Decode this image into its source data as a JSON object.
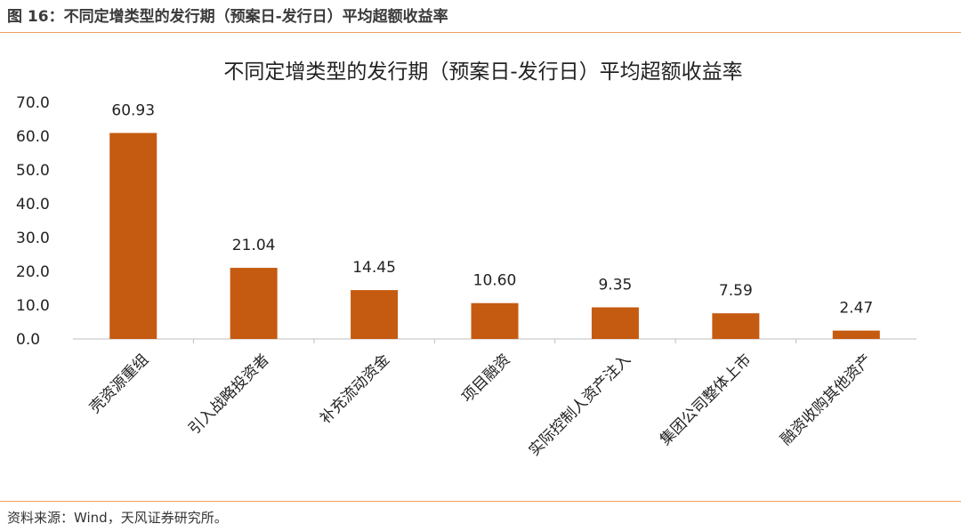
{
  "figure": {
    "caption": "图 16：不同定增类型的发行期（预案日-发行日）平均超额收益率",
    "source": "资料来源：Wind，天风证券研究所。"
  },
  "colors": {
    "bar": "#c55a11",
    "rule": "#f0a060",
    "axis": "#bfbfbf"
  },
  "chart_data": {
    "type": "bar",
    "title": "不同定增类型的发行期（预案日-发行日）平均超额收益率",
    "categories": [
      "壳资源重组",
      "引入战略投资者",
      "补充流动资金",
      "项目融资",
      "实际控制人资产注入",
      "集团公司整体上市",
      "融资收购其他资产"
    ],
    "values": [
      60.93,
      21.04,
      14.45,
      10.6,
      9.35,
      7.59,
      2.47
    ],
    "value_labels": [
      "60.93",
      "21.04",
      "14.45",
      "10.60",
      "9.35",
      "7.59",
      "2.47"
    ],
    "yticks": [
      "0.0",
      "10.0",
      "20.0",
      "30.0",
      "40.0",
      "50.0",
      "60.0",
      "70.0"
    ],
    "ylim": [
      0,
      70
    ],
    "xlabel": "",
    "ylabel": "",
    "grid": false,
    "legend": "none"
  }
}
